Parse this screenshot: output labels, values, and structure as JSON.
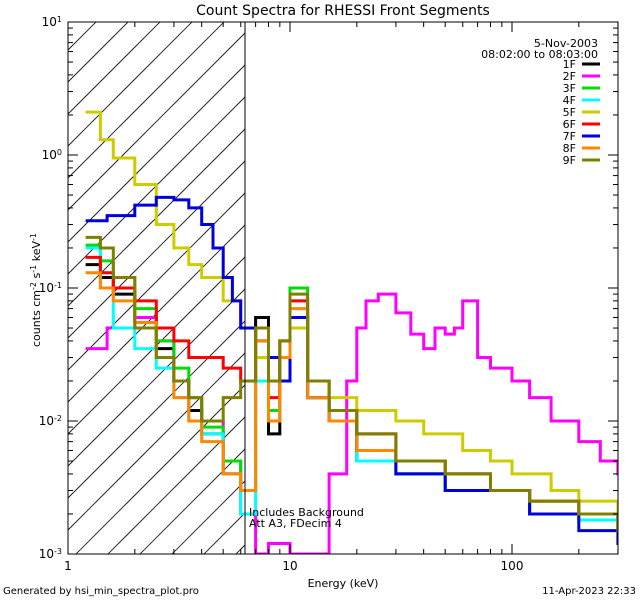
{
  "chart_data": {
    "type": "line",
    "title": "Count Spectra for RHESSI Front Segments",
    "xlabel": "Energy (keV)",
    "ylabel": "counts cm^-2 s^-1 keV^-1",
    "xscale": "log",
    "yscale": "log",
    "xlim": [
      1,
      300
    ],
    "ylim": [
      0.001,
      10
    ],
    "x_tick_labels": [
      "1",
      "10",
      "100"
    ],
    "y_tick_labels": [
      "10^-3",
      "10^-2",
      "10^-1",
      "10^0",
      "10^1"
    ],
    "hatched_region": {
      "from_kev": 1,
      "to_kev": 6
    },
    "date": "5-Nov-2003",
    "time_range": "08:02:00 to 08:03:00",
    "annotations": [
      "Includes Background",
      "Att A3, FDecim 4"
    ],
    "legend_position": "top-right",
    "series": [
      {
        "name": "1F",
        "color": "#000000",
        "x": [
          1.2,
          1.4,
          1.6,
          2,
          2.5,
          3,
          3.5,
          4,
          5,
          6,
          7,
          8,
          9,
          10,
          12,
          15,
          20,
          30,
          50,
          80,
          120,
          200,
          300
        ],
        "values": [
          0.15,
          0.12,
          0.09,
          0.06,
          0.035,
          0.02,
          0.012,
          0.008,
          0.004,
          0.003,
          0.06,
          0.008,
          0.02,
          0.06,
          0.015,
          0.01,
          0.005,
          0.004,
          0.003,
          0.003,
          0.002,
          0.002,
          0.0015
        ]
      },
      {
        "name": "2F",
        "color": "#ff00ff",
        "x": [
          1.2,
          1.5,
          2,
          2.5,
          3,
          3.5,
          4,
          5,
          6,
          7,
          8,
          10,
          12,
          15,
          18,
          20,
          22,
          25,
          30,
          35,
          40,
          45,
          50,
          55,
          60,
          70,
          80,
          100,
          120,
          150,
          200,
          250,
          300
        ],
        "values": [
          0.035,
          0.05,
          0.06,
          0.04,
          0.02,
          0.015,
          0.01,
          0.005,
          0.002,
          0.001,
          0.0012,
          0.001,
          0.001,
          0.004,
          0.02,
          0.05,
          0.08,
          0.09,
          0.065,
          0.045,
          0.035,
          0.05,
          0.045,
          0.05,
          0.08,
          0.03,
          0.025,
          0.02,
          0.015,
          0.01,
          0.007,
          0.005,
          0.004
        ]
      },
      {
        "name": "3F",
        "color": "#00dd00",
        "x": [
          1.2,
          1.4,
          1.6,
          2,
          2.5,
          3,
          3.5,
          4,
          5,
          6,
          7,
          8,
          9,
          10,
          12,
          15,
          20,
          30,
          50,
          80,
          120,
          200,
          300
        ],
        "values": [
          0.21,
          0.16,
          0.12,
          0.07,
          0.04,
          0.025,
          0.015,
          0.009,
          0.005,
          0.003,
          0.04,
          0.012,
          0.03,
          0.1,
          0.02,
          0.012,
          0.006,
          0.005,
          0.004,
          0.003,
          0.0025,
          0.002,
          0.0015
        ]
      },
      {
        "name": "4F",
        "color": "#00ffff",
        "x": [
          1.2,
          1.4,
          1.6,
          2,
          2.5,
          3,
          3.5,
          4,
          5,
          6,
          7,
          8,
          9,
          10,
          12,
          15,
          20,
          30,
          50,
          80,
          120,
          200,
          300
        ],
        "values": [
          0.2,
          0.1,
          0.05,
          0.035,
          0.025,
          0.015,
          0.01,
          0.008,
          0.004,
          0.002,
          0.02,
          0.01,
          0.03,
          0.08,
          0.015,
          0.01,
          0.005,
          0.004,
          0.003,
          0.003,
          0.002,
          0.0018,
          0.0015
        ]
      },
      {
        "name": "5F",
        "color": "#cccc00",
        "x": [
          1.2,
          1.4,
          1.6,
          2,
          2.5,
          3,
          3.5,
          4,
          5,
          6,
          7,
          8,
          9,
          10,
          12,
          15,
          20,
          25,
          30,
          40,
          60,
          80,
          100,
          150,
          200,
          300
        ],
        "values": [
          2.1,
          1.3,
          0.95,
          0.6,
          0.3,
          0.2,
          0.15,
          0.12,
          0.08,
          0.05,
          0.03,
          0.02,
          0.03,
          0.05,
          0.02,
          0.015,
          0.012,
          0.012,
          0.01,
          0.008,
          0.006,
          0.005,
          0.004,
          0.003,
          0.0025,
          0.002
        ]
      },
      {
        "name": "6F",
        "color": "#ff0000",
        "x": [
          1.2,
          1.4,
          1.6,
          2,
          2.5,
          3,
          3.5,
          4,
          5,
          6,
          7,
          8,
          9,
          10,
          12,
          15,
          20,
          30,
          50,
          80,
          120,
          200,
          300
        ],
        "values": [
          0.17,
          0.13,
          0.1,
          0.08,
          0.05,
          0.04,
          0.03,
          0.03,
          0.025,
          0.02,
          0.05,
          0.015,
          0.04,
          0.08,
          0.02,
          0.012,
          0.008,
          0.005,
          0.004,
          0.003,
          0.0025,
          0.002,
          0.0015
        ]
      },
      {
        "name": "7F",
        "color": "#0000dd",
        "x": [
          1.2,
          1.5,
          2,
          2.5,
          3,
          3.5,
          4,
          4.5,
          5,
          5.5,
          6,
          7,
          8,
          9,
          10,
          12,
          15,
          20,
          30,
          50,
          80,
          120,
          200,
          300
        ],
        "values": [
          0.32,
          0.35,
          0.42,
          0.48,
          0.46,
          0.4,
          0.3,
          0.2,
          0.12,
          0.08,
          0.05,
          0.04,
          0.03,
          0.02,
          0.06,
          0.015,
          0.01,
          0.006,
          0.004,
          0.003,
          0.003,
          0.002,
          0.0015,
          0.0012
        ]
      },
      {
        "name": "8F",
        "color": "#ff8800",
        "x": [
          1.2,
          1.4,
          1.6,
          2,
          2.5,
          3,
          3.5,
          4,
          5,
          6,
          7,
          8,
          9,
          10,
          12,
          15,
          20,
          30,
          50,
          80,
          120,
          200,
          300
        ],
        "values": [
          0.13,
          0.1,
          0.08,
          0.055,
          0.03,
          0.015,
          0.01,
          0.007,
          0.004,
          0.003,
          0.04,
          0.01,
          0.03,
          0.07,
          0.015,
          0.01,
          0.006,
          0.005,
          0.004,
          0.003,
          0.0025,
          0.002,
          0.0016
        ]
      },
      {
        "name": "9F",
        "color": "#808000",
        "x": [
          1.2,
          1.4,
          1.6,
          2,
          2.5,
          3,
          3.5,
          4,
          5,
          6,
          7,
          8,
          9,
          10,
          12,
          15,
          20,
          30,
          50,
          80,
          120,
          200,
          300
        ],
        "values": [
          0.24,
          0.2,
          0.12,
          0.05,
          0.03,
          0.02,
          0.015,
          0.01,
          0.015,
          0.02,
          0.05,
          0.02,
          0.04,
          0.09,
          0.02,
          0.012,
          0.008,
          0.005,
          0.004,
          0.003,
          0.0025,
          0.002,
          0.0015
        ]
      }
    ]
  },
  "footer": {
    "left": "Generated by hsi_min_spectra_plot.pro",
    "right": "11-Apr-2023 22:33"
  }
}
